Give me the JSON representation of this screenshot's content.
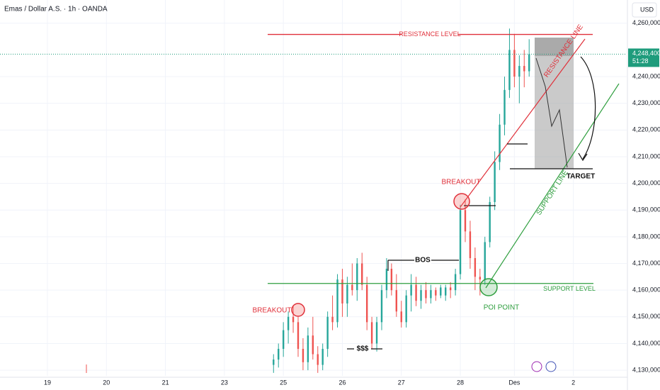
{
  "chart_data": {
    "type": "candlestick",
    "title": "Emas / Dollar A.S. · 1h · OANDA",
    "currency": "USD",
    "up_color": "#26a69a",
    "down_color": "#ef5350",
    "grid": true,
    "xlim": [
      -19.3,
      235.7
    ],
    "xticks": [
      {
        "value": 0,
        "label": "19"
      },
      {
        "value": 24,
        "label": "20"
      },
      {
        "value": 48,
        "label": "21"
      },
      {
        "value": 72,
        "label": "23"
      },
      {
        "value": 96,
        "label": "25"
      },
      {
        "value": 120,
        "label": "26"
      },
      {
        "value": 144,
        "label": "27"
      },
      {
        "value": 168,
        "label": "28"
      },
      {
        "value": 190,
        "label": "Des"
      },
      {
        "value": 214,
        "label": "2"
      }
    ],
    "ylim": [
      4127900,
      4268700
    ],
    "yticks": [
      {
        "value": 4130000,
        "label": "4,130,000"
      },
      {
        "value": 4140000,
        "label": "4,140,000"
      },
      {
        "value": 4150000,
        "label": "4,150,000"
      },
      {
        "value": 4160000,
        "label": "4,160,000"
      },
      {
        "value": 4170000,
        "label": "4,170,000"
      },
      {
        "value": 4180000,
        "label": "4,180,000"
      },
      {
        "value": 4190000,
        "label": "4,190,000"
      },
      {
        "value": 4200000,
        "label": "4,200,000"
      },
      {
        "value": 4210000,
        "label": "4,210,000"
      },
      {
        "value": 4220000,
        "label": "4,220,000"
      },
      {
        "value": 4230000,
        "label": "4,230,000"
      },
      {
        "value": 4240000,
        "label": "4,240,000"
      },
      {
        "value": 4260000,
        "label": "4,260,000"
      }
    ],
    "x": [
      92,
      94,
      96,
      98,
      100,
      102,
      104,
      106,
      108,
      110,
      112,
      114,
      116,
      118,
      120,
      122,
      124,
      126,
      128,
      130,
      132,
      134,
      136,
      138,
      140,
      142,
      144,
      146,
      148,
      150,
      152,
      154,
      156,
      158,
      160,
      162,
      164,
      166,
      168,
      170,
      172,
      174,
      176,
      178,
      180,
      182,
      184,
      186,
      188,
      190,
      192,
      194,
      196
    ],
    "open": [
      4132000,
      4134000,
      4138000,
      4145000,
      4150000,
      4148000,
      4138000,
      4133000,
      4143000,
      4136000,
      4132000,
      4138000,
      4150000,
      4148000,
      4164000,
      4155000,
      4162000,
      4160000,
      4170000,
      4162000,
      4148000,
      4140000,
      4148000,
      4160000,
      4168000,
      4160000,
      4152000,
      4148000,
      4158000,
      4162000,
      4156000,
      4160000,
      4157000,
      4160000,
      4158000,
      4158000,
      4161000,
      4160000,
      4166000,
      4190000,
      4182000,
      4172000,
      4165000,
      4164000,
      4178000,
      4193000,
      4208000,
      4222000,
      4235000,
      4250000,
      4240000,
      4244000,
      4242000
    ],
    "high": [
      4136000,
      4140000,
      4148000,
      4152000,
      4154000,
      4150000,
      4142000,
      4146000,
      4150000,
      4139000,
      4140000,
      4152000,
      4158000,
      4166000,
      4168000,
      4165000,
      4170000,
      4172000,
      4174000,
      4165000,
      4150000,
      4150000,
      4162000,
      4172000,
      4170000,
      4166000,
      4156000,
      4160000,
      4166000,
      4165000,
      4162000,
      4163000,
      4162000,
      4161000,
      4162000,
      4162000,
      4163000,
      4168000,
      4192000,
      4194000,
      4186000,
      4176000,
      4168000,
      4180000,
      4195000,
      4212000,
      4226000,
      4240000,
      4258000,
      4256000,
      4248000,
      4250000,
      4254000
    ],
    "low": [
      4129000,
      4131000,
      4135000,
      4140000,
      4144000,
      4135000,
      4130000,
      4130000,
      4134000,
      4129000,
      4130000,
      4135000,
      4145000,
      4146000,
      4150000,
      4150000,
      4158000,
      4156000,
      4160000,
      4145000,
      4138000,
      4137000,
      4145000,
      4157000,
      4158000,
      4150000,
      4146000,
      4146000,
      4152000,
      4154000,
      4153000,
      4155000,
      4155000,
      4156000,
      4157000,
      4156000,
      4157000,
      4158000,
      4164000,
      4178000,
      4168000,
      4160000,
      4158000,
      4162000,
      4176000,
      4190000,
      4205000,
      4218000,
      4232000,
      4236000,
      4230000,
      4236000,
      4240000
    ],
    "close": [
      4134000,
      4138000,
      4145000,
      4150000,
      4148000,
      4138000,
      4133000,
      4143000,
      4136000,
      4132000,
      4138000,
      4150000,
      4148000,
      4164000,
      4155000,
      4162000,
      4160000,
      4170000,
      4162000,
      4148000,
      4140000,
      4148000,
      4160000,
      4168000,
      4160000,
      4152000,
      4148000,
      4158000,
      4162000,
      4156000,
      4160000,
      4157000,
      4160000,
      4158000,
      4161000,
      4161000,
      4160000,
      4166000,
      4190000,
      4182000,
      4172000,
      4165000,
      4164000,
      4178000,
      4193000,
      4208000,
      4222000,
      4235000,
      4250000,
      4240000,
      4244000,
      4242000,
      4248400
    ],
    "last_price": {
      "value": 4248400,
      "label": "4,248,400",
      "color": "#1e9c7c"
    },
    "countdown": "51:28",
    "levels": [
      {
        "label": "RESISTANCE LEVEL",
        "value": 4255800,
        "color": "#e0303a"
      },
      {
        "label": "SUPPORT LEVEL",
        "value": 4162500,
        "color": "#2e9e3e"
      }
    ],
    "annotations": {
      "resistance_line": "RESISTANCE LINE",
      "support_line": "SUPPORT LINE",
      "breakout_low": "BREAKOUT",
      "breakout_high": "BREAKOUT",
      "bos": "BOS",
      "liquidity": "$$$",
      "poi": "POI POINT",
      "target": "TARGET"
    }
  }
}
